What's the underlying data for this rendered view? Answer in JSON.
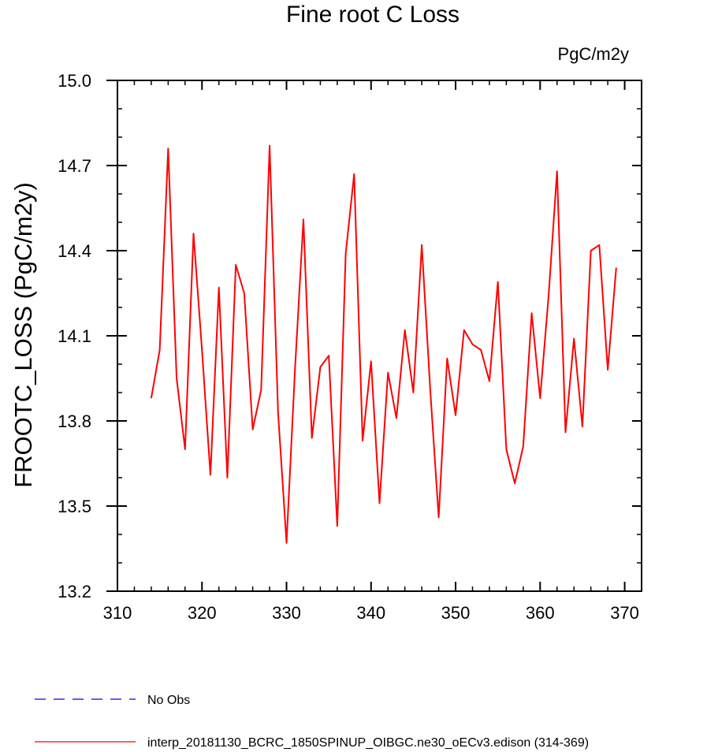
{
  "chart_data": {
    "type": "line",
    "title": "Fine root C Loss",
    "units": "PgC/m2y",
    "xlabel": "",
    "ylabel": "FROOTC_LOSS  (PgC/m2y)",
    "xlim": [
      310,
      372
    ],
    "ylim": [
      13.2,
      15.0
    ],
    "x_ticks": [
      310,
      320,
      330,
      340,
      350,
      360,
      370
    ],
    "x_tick_labels": [
      "310",
      "320",
      "330",
      "340",
      "350",
      "360",
      "370"
    ],
    "y_ticks": [
      13.2,
      13.5,
      13.8,
      14.1,
      14.4,
      14.7,
      15.0
    ],
    "y_tick_labels": [
      "13.2",
      "13.5",
      "13.8",
      "14.1",
      "14.4",
      "14.7",
      "15.0"
    ],
    "grid": false,
    "legend_position": "bottom",
    "series": [
      {
        "name": "No Obs",
        "color": "#0000ff",
        "dash": "dashed",
        "x": [],
        "y": []
      },
      {
        "name": "interp_20181130_BCRC_1850SPINUP_OIBGC.ne30_oECv3.edison (314-369)",
        "color": "#ff0000",
        "dash": "solid",
        "x": [
          314,
          315,
          316,
          317,
          318,
          319,
          320,
          321,
          322,
          323,
          324,
          325,
          326,
          327,
          328,
          329,
          330,
          331,
          332,
          333,
          334,
          335,
          336,
          337,
          338,
          339,
          340,
          341,
          342,
          343,
          344,
          345,
          346,
          347,
          348,
          349,
          350,
          351,
          352,
          353,
          354,
          355,
          356,
          357,
          358,
          359,
          360,
          361,
          362,
          363,
          364,
          365,
          366,
          367,
          368,
          369
        ],
        "y": [
          13.88,
          14.05,
          14.76,
          13.95,
          13.7,
          14.46,
          14.05,
          13.61,
          14.27,
          13.6,
          14.35,
          14.25,
          13.77,
          13.91,
          14.77,
          13.83,
          13.37,
          13.98,
          14.51,
          13.74,
          13.99,
          14.03,
          13.43,
          14.39,
          14.67,
          13.73,
          14.01,
          13.51,
          13.97,
          13.81,
          14.12,
          13.9,
          14.42,
          13.91,
          13.46,
          14.02,
          13.82,
          14.12,
          14.07,
          14.05,
          13.94,
          14.29,
          13.7,
          13.58,
          13.71,
          14.18,
          13.88,
          14.24,
          14.68,
          13.76,
          14.09,
          13.78,
          14.4,
          14.42,
          13.98,
          14.34
        ]
      }
    ]
  }
}
